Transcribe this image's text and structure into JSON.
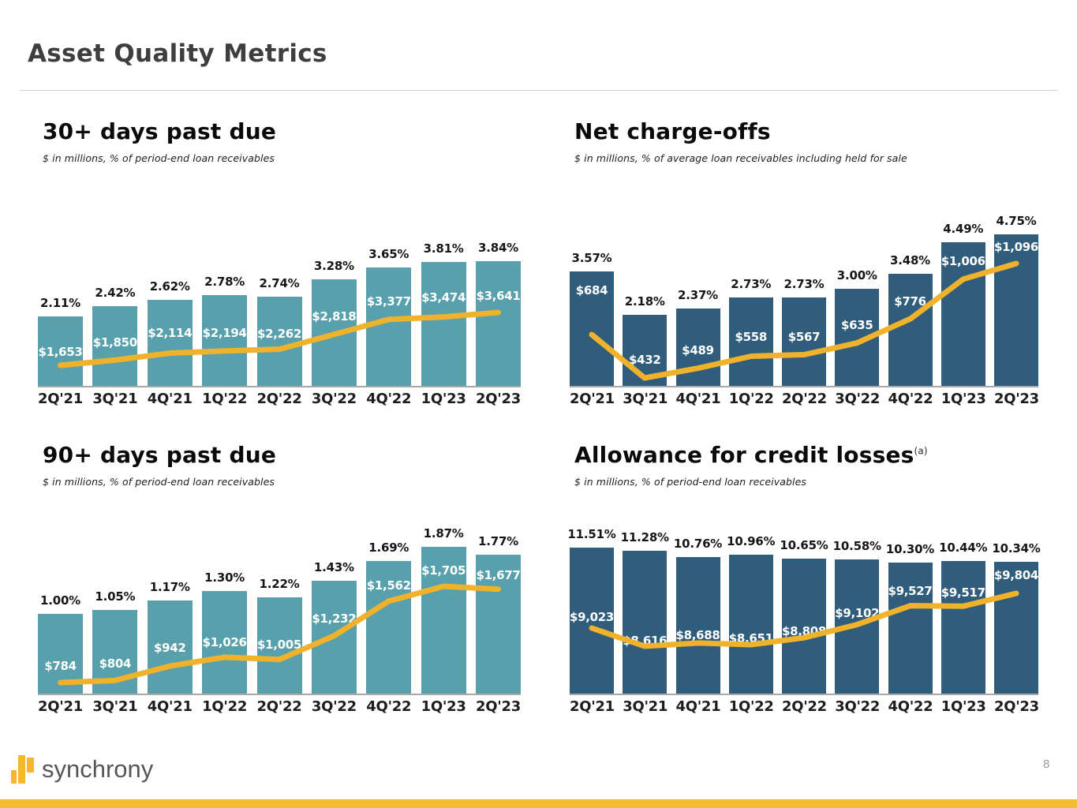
{
  "slide": {
    "title": "Asset Quality Metrics",
    "page_number": "8",
    "logo_text": "synchrony",
    "colors": {
      "teal": "#57a0ac",
      "navy": "#2f5d7b",
      "gold_line": "#f1b22b",
      "gold_footer": "#f5bb33",
      "gold_logo": "#f5b72a"
    }
  },
  "chart_data": [
    {
      "type": "bar",
      "position": "top-left",
      "title": "30+ days past due",
      "title_superscript": "",
      "subtitle": "$ in millions, % of period-end loan receivables",
      "categories": [
        "2Q'21",
        "3Q'21",
        "4Q'21",
        "1Q'22",
        "2Q'22",
        "3Q'22",
        "4Q'22",
        "1Q'23",
        "2Q'23"
      ],
      "bar_color": "#57a0ac",
      "line_color": "#f1b22b",
      "series": [
        {
          "name": "dollars-in-millions",
          "style": "bar",
          "values": [
            1653,
            1850,
            2114,
            2194,
            2262,
            2818,
            3377,
            3474,
            3641
          ],
          "labels": [
            "$1,653",
            "$1,850",
            "$2,114",
            "$2,194",
            "$2,262",
            "$2,818",
            "$3,377",
            "$3,474",
            "$3,641"
          ]
        },
        {
          "name": "percent-of-period-end-loan-receivables",
          "style": "line",
          "values": [
            2.11,
            2.42,
            2.62,
            2.78,
            2.74,
            3.28,
            3.65,
            3.81,
            3.84
          ],
          "labels": [
            "2.11%",
            "2.42%",
            "2.62%",
            "2.78%",
            "2.74%",
            "3.28%",
            "3.65%",
            "3.81%",
            "3.84%"
          ]
        }
      ]
    },
    {
      "type": "bar",
      "position": "top-right",
      "title": "Net charge-offs",
      "title_superscript": "",
      "subtitle": "$ in millions, % of average loan receivables including held for sale",
      "categories": [
        "2Q'21",
        "3Q'21",
        "4Q'21",
        "1Q'22",
        "2Q'22",
        "3Q'22",
        "4Q'22",
        "1Q'23",
        "2Q'23"
      ],
      "bar_color": "#2f5d7b",
      "line_color": "#f1b22b",
      "series": [
        {
          "name": "dollars-in-millions",
          "style": "bar",
          "values": [
            684,
            432,
            489,
            558,
            567,
            635,
            776,
            1006,
            1096
          ],
          "labels": [
            "$684",
            "$432",
            "$489",
            "$558",
            "$567",
            "$635",
            "$776",
            "$1,006",
            "$1,096"
          ]
        },
        {
          "name": "percent-of-average-loan-receivables",
          "style": "line",
          "values": [
            3.57,
            2.18,
            2.37,
            2.73,
            2.73,
            3.0,
            3.48,
            4.49,
            4.75
          ],
          "labels": [
            "3.57%",
            "2.18%",
            "2.37%",
            "2.73%",
            "2.73%",
            "3.00%",
            "3.48%",
            "4.49%",
            "4.75%"
          ]
        }
      ]
    },
    {
      "type": "bar",
      "position": "bottom-left",
      "title": "90+ days past due",
      "title_superscript": "",
      "subtitle": "$ in millions, % of period-end loan receivables",
      "categories": [
        "2Q'21",
        "3Q'21",
        "4Q'21",
        "1Q'22",
        "2Q'22",
        "3Q'22",
        "4Q'22",
        "1Q'23",
        "2Q'23"
      ],
      "bar_color": "#57a0ac",
      "line_color": "#f1b22b",
      "series": [
        {
          "name": "dollars-in-millions",
          "style": "bar",
          "values": [
            784,
            804,
            942,
            1026,
            1005,
            1232,
            1562,
            1705,
            1677
          ],
          "labels": [
            "$784",
            "$804",
            "$942",
            "$1,026",
            "$1,005",
            "$1,232",
            "$1,562",
            "$1,705",
            "$1,677"
          ]
        },
        {
          "name": "percent-of-period-end-loan-receivables",
          "style": "line",
          "values": [
            1.0,
            1.05,
            1.17,
            1.3,
            1.22,
            1.43,
            1.69,
            1.87,
            1.77
          ],
          "labels": [
            "1.00%",
            "1.05%",
            "1.17%",
            "1.30%",
            "1.22%",
            "1.43%",
            "1.69%",
            "1.87%",
            "1.77%"
          ]
        }
      ]
    },
    {
      "type": "bar",
      "position": "bottom-right",
      "title": "Allowance for credit losses",
      "title_superscript": "(a)",
      "subtitle": "$ in millions, % of period-end loan receivables",
      "categories": [
        "2Q'21",
        "3Q'21",
        "4Q'21",
        "1Q'22",
        "2Q'22",
        "3Q'22",
        "4Q'22",
        "1Q'23",
        "2Q'23"
      ],
      "bar_color": "#2f5d7b",
      "line_color": "#f1b22b",
      "series": [
        {
          "name": "dollars-in-millions",
          "style": "bar",
          "values": [
            9023,
            8616,
            8688,
            8651,
            8808,
            9102,
            9527,
            9517,
            9804
          ],
          "labels": [
            "$9,023",
            "$8,616",
            "$8,688",
            "$8,651",
            "$8,808",
            "$9,102",
            "$9,527",
            "$9,517",
            "$9,804"
          ]
        },
        {
          "name": "percent-of-period-end-loan-receivables",
          "style": "line",
          "values": [
            11.51,
            11.28,
            10.76,
            10.96,
            10.65,
            10.58,
            10.3,
            10.44,
            10.34
          ],
          "labels": [
            "11.51%",
            "11.28%",
            "10.76%",
            "10.96%",
            "10.65%",
            "10.58%",
            "10.30%",
            "10.44%",
            "10.34%"
          ]
        }
      ]
    }
  ]
}
